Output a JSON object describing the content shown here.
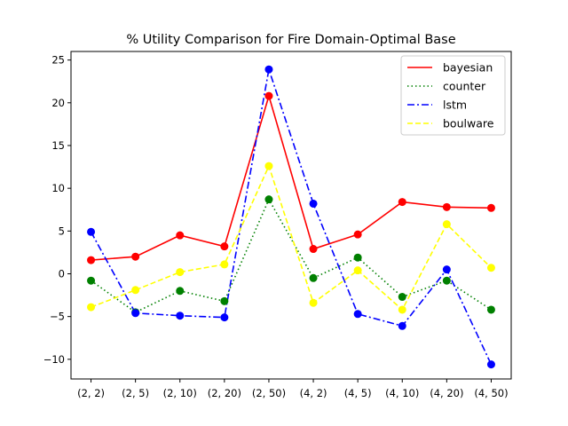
{
  "chart_data": {
    "type": "line",
    "title": "% Utility Comparison for Fire Domain-Optimal Base",
    "xlabel": "",
    "ylabel": "",
    "categories": [
      "(2, 2)",
      "(2, 5)",
      "(2, 10)",
      "(2, 20)",
      "(2, 50)",
      "(4, 2)",
      "(4, 5)",
      "(4, 10)",
      "(4, 20)",
      "(4, 50)"
    ],
    "ylim": [
      -12.3,
      26.0
    ],
    "yticks": [
      -10,
      -5,
      0,
      5,
      10,
      15,
      20,
      25
    ],
    "grid": false,
    "legend_position": "top-right",
    "series": [
      {
        "name": "bayesian",
        "color": "#ff0000",
        "dash": "solid",
        "values": [
          1.6,
          2.0,
          4.5,
          3.2,
          20.8,
          2.9,
          4.6,
          8.4,
          7.8,
          7.7
        ]
      },
      {
        "name": "counter",
        "color": "#008000",
        "dash": "dotted",
        "values": [
          -0.8,
          -4.5,
          -2.0,
          -3.2,
          8.7,
          -0.5,
          1.9,
          -2.7,
          -0.8,
          -4.2
        ]
      },
      {
        "name": "lstm",
        "color": "#0000ff",
        "dash": "dashdot",
        "values": [
          4.9,
          -4.6,
          -4.9,
          -5.1,
          23.9,
          8.2,
          -4.7,
          -6.1,
          0.5,
          -10.6
        ]
      },
      {
        "name": "boulware",
        "color": "#ffff00",
        "dash": "dashed",
        "values": [
          -3.9,
          -1.9,
          0.2,
          1.1,
          12.6,
          -3.4,
          0.4,
          -4.2,
          5.8,
          0.7
        ]
      }
    ]
  }
}
